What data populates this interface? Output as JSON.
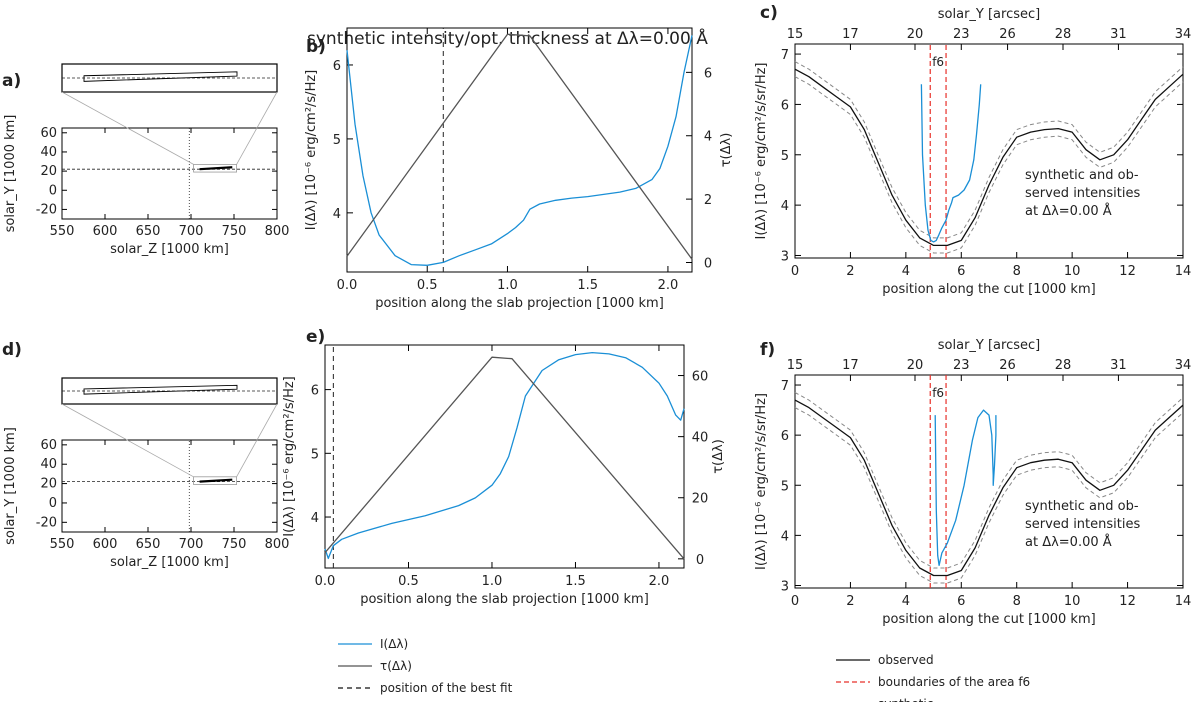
{
  "colors": {
    "blue": "#1a8fd6",
    "gray": "#555555",
    "black": "#000000",
    "red": "#e8302a",
    "dgray": "#888888"
  },
  "text": {
    "figure_c_title": "solar_Y [arcsec]",
    "figure_f_title": "solar_Y [arcsec]",
    "annot_line1": "synthetic and ob-",
    "annot_line2": "served intensities",
    "annot_line3": "at Δλ=0.00 Å",
    "f6": "f6"
  },
  "legend_b": [
    {
      "label": "I(Δλ)",
      "style": "blue-solid"
    },
    {
      "label": "τ(Δλ)",
      "style": "gray-solid"
    },
    {
      "label": "position of the best fit",
      "style": "black-dashed"
    }
  ],
  "legend_c": [
    {
      "label": "observed",
      "style": "black-solid"
    },
    {
      "label": "boundaries of the area f6",
      "style": "red-dashed"
    },
    {
      "label": "synthetic",
      "style": "blue-solid"
    }
  ],
  "chart_data": [
    {
      "panel": "a",
      "label": "a)",
      "type": "line",
      "xlabel": "solar_Z [1000 km]",
      "ylabel": "solar_Y [1000 km]",
      "xlim": [
        550,
        800
      ],
      "ylim": [
        -30,
        65
      ],
      "xticks": [
        550,
        600,
        650,
        700,
        750,
        800
      ],
      "yticks": [
        -20,
        0,
        20,
        40,
        60
      ],
      "ref_y": 22,
      "ref_x": 698,
      "slab": {
        "x": [
          710,
          748
        ],
        "y": [
          22,
          24
        ]
      },
      "zoom_box": {
        "x": [
          703,
          753
        ],
        "y": [
          19,
          27
        ]
      }
    },
    {
      "panel": "b",
      "label": "b)",
      "type": "line",
      "title": "synthetic intensity/opt. thickness at Δλ=0.00 Å",
      "xlabel": "position along the slab projection [1000 km]",
      "ylabel": "I(Δλ) [10⁻⁶ erg/cm²/s/Hz]",
      "y2label": "τ(Δλ)",
      "xlim": [
        0,
        2.15
      ],
      "ylim": [
        3.2,
        6.5
      ],
      "y2lim": [
        -0.3,
        7.4
      ],
      "xticks": [
        "0.0",
        "0.5",
        "1.0",
        "1.5",
        "2.0"
      ],
      "yticks": [
        "4",
        "5",
        "6"
      ],
      "y2ticks": [
        "0",
        "2",
        "4",
        "6"
      ],
      "best_fit_x": 0.6,
      "series": [
        {
          "name": "I(Δλ)",
          "axis": "left",
          "x": [
            0,
            0.05,
            0.1,
            0.15,
            0.2,
            0.3,
            0.4,
            0.5,
            0.6,
            0.7,
            0.8,
            0.9,
            1.0,
            1.05,
            1.1,
            1.14,
            1.2,
            1.3,
            1.4,
            1.5,
            1.6,
            1.7,
            1.8,
            1.9,
            1.95,
            2.0,
            2.05,
            2.1,
            2.15
          ],
          "y": [
            6.2,
            5.2,
            4.5,
            4.0,
            3.7,
            3.42,
            3.3,
            3.29,
            3.33,
            3.42,
            3.5,
            3.58,
            3.72,
            3.8,
            3.9,
            4.05,
            4.12,
            4.17,
            4.2,
            4.22,
            4.25,
            4.28,
            4.33,
            4.45,
            4.6,
            4.9,
            5.3,
            5.9,
            6.4
          ]
        },
        {
          "name": "τ(Δλ)",
          "axis": "right",
          "x": [
            0,
            1.0,
            1.14,
            2.15
          ],
          "y": [
            0.2,
            7.2,
            7.15,
            0.1
          ]
        }
      ]
    },
    {
      "panel": "c",
      "label": "c)",
      "type": "line",
      "xlabel": "position along the cut [1000 km]",
      "ylabel": "I(Δλ) [10⁻⁶ erg/cm²/s/sr/Hz]",
      "x2label": "solar_Y [arcsec]",
      "xlim": [
        0,
        14
      ],
      "ylim": [
        2.95,
        7.2
      ],
      "xticks": [
        "0",
        "2",
        "4",
        "6",
        "8",
        "10",
        "12",
        "14"
      ],
      "yticks": [
        "3",
        "4",
        "5",
        "6",
        "7"
      ],
      "top_ticks": [
        {
          "x": 0,
          "label": "15"
        },
        {
          "x": 2,
          "label": "17"
        },
        {
          "x": 4.33,
          "label": "20"
        },
        {
          "x": 6,
          "label": "23"
        },
        {
          "x": 7.67,
          "label": "26"
        },
        {
          "x": 9.67,
          "label": "28"
        },
        {
          "x": 11.67,
          "label": "31"
        },
        {
          "x": 14,
          "label": "34"
        }
      ],
      "f6_boundaries": [
        4.88,
        5.45
      ],
      "series": [
        {
          "name": "observed",
          "x": [
            0,
            0.5,
            1,
            1.5,
            2,
            2.5,
            3,
            3.5,
            4,
            4.5,
            5,
            5.5,
            6,
            6.5,
            7,
            7.5,
            8,
            8.5,
            9,
            9.5,
            10,
            10.5,
            11,
            11.5,
            12,
            12.5,
            13,
            13.5,
            14
          ],
          "y": [
            6.7,
            6.55,
            6.35,
            6.15,
            5.95,
            5.5,
            4.85,
            4.2,
            3.7,
            3.35,
            3.2,
            3.2,
            3.3,
            3.75,
            4.4,
            4.95,
            5.35,
            5.45,
            5.5,
            5.52,
            5.45,
            5.1,
            4.9,
            5.0,
            5.3,
            5.7,
            6.1,
            6.35,
            6.6
          ]
        },
        {
          "name": "observed +1σ",
          "x": [
            0,
            0.5,
            1,
            1.5,
            2,
            2.5,
            3,
            3.5,
            4,
            4.5,
            5,
            5.5,
            6,
            6.5,
            7,
            7.5,
            8,
            8.5,
            9,
            9.5,
            10,
            10.5,
            11,
            11.5,
            12,
            12.5,
            13,
            13.5,
            14
          ],
          "y": [
            6.85,
            6.7,
            6.5,
            6.3,
            6.1,
            5.65,
            5.0,
            4.35,
            3.85,
            3.5,
            3.35,
            3.35,
            3.45,
            3.9,
            4.55,
            5.1,
            5.5,
            5.6,
            5.65,
            5.67,
            5.6,
            5.25,
            5.05,
            5.15,
            5.45,
            5.85,
            6.25,
            6.5,
            6.75
          ]
        },
        {
          "name": "observed -1σ",
          "x": [
            0,
            0.5,
            1,
            1.5,
            2,
            2.5,
            3,
            3.5,
            4,
            4.5,
            5,
            5.5,
            6,
            6.5,
            7,
            7.5,
            8,
            8.5,
            9,
            9.5,
            10,
            10.5,
            11,
            11.5,
            12,
            12.5,
            13,
            13.5,
            14
          ],
          "y": [
            6.55,
            6.4,
            6.2,
            6.0,
            5.8,
            5.35,
            4.7,
            4.05,
            3.55,
            3.2,
            3.05,
            3.05,
            3.15,
            3.6,
            4.25,
            4.8,
            5.2,
            5.3,
            5.35,
            5.37,
            5.3,
            4.95,
            4.75,
            4.85,
            5.15,
            5.55,
            5.95,
            6.2,
            6.45
          ]
        },
        {
          "name": "synthetic",
          "x": [
            4.56,
            4.6,
            4.7,
            4.8,
            4.9,
            5.0,
            5.1,
            5.2,
            5.3,
            5.45,
            5.55,
            5.65,
            5.7,
            5.9,
            6.1,
            6.3,
            6.45,
            6.55,
            6.65,
            6.7
          ],
          "y": [
            6.4,
            5.0,
            4.0,
            3.5,
            3.3,
            3.27,
            3.3,
            3.42,
            3.55,
            3.7,
            3.9,
            4.05,
            4.15,
            4.2,
            4.3,
            4.5,
            4.9,
            5.4,
            6.0,
            6.4
          ]
        }
      ]
    },
    {
      "panel": "d",
      "label": "d)",
      "type": "line",
      "xlabel": "solar_Z [1000 km]",
      "ylabel": "solar_Y [1000 km]",
      "xlim": [
        550,
        800
      ],
      "ylim": [
        -30,
        65
      ],
      "xticks": [
        550,
        600,
        650,
        700,
        750,
        800
      ],
      "yticks": [
        -20,
        0,
        20,
        40,
        60
      ],
      "ref_y": 22,
      "ref_x": 698,
      "slab": {
        "x": [
          710,
          748
        ],
        "y": [
          22,
          24
        ]
      },
      "zoom_box": {
        "x": [
          703,
          753
        ],
        "y": [
          19,
          27
        ]
      }
    },
    {
      "panel": "e",
      "label": "e)",
      "type": "line",
      "xlabel": "position along the slab projection [1000 km]",
      "ylabel": "I(Δλ) [10⁻⁶ erg/cm²/s/Hz]",
      "y2label": "τ(Δλ)",
      "xlim": [
        0,
        2.15
      ],
      "ylim": [
        3.2,
        6.7
      ],
      "y2lim": [
        -3,
        70
      ],
      "xticks": [
        "0.0",
        "0.5",
        "1.0",
        "1.5",
        "2.0"
      ],
      "yticks": [
        "4",
        "5",
        "6"
      ],
      "y2ticks": [
        "0",
        "20",
        "40",
        "60"
      ],
      "best_fit_x": 0.05,
      "series": [
        {
          "name": "I(Δλ)",
          "axis": "left",
          "x": [
            0,
            0.02,
            0.05,
            0.1,
            0.2,
            0.4,
            0.6,
            0.8,
            0.9,
            1.0,
            1.05,
            1.1,
            1.15,
            1.2,
            1.3,
            1.4,
            1.5,
            1.6,
            1.7,
            1.8,
            1.9,
            2.0,
            2.05,
            2.1,
            2.13,
            2.15
          ],
          "y": [
            3.5,
            3.35,
            3.55,
            3.65,
            3.75,
            3.9,
            4.02,
            4.18,
            4.3,
            4.5,
            4.68,
            4.95,
            5.4,
            5.9,
            6.3,
            6.47,
            6.55,
            6.58,
            6.56,
            6.5,
            6.35,
            6.1,
            5.9,
            5.6,
            5.52,
            5.7
          ]
        },
        {
          "name": "τ(Δλ)",
          "axis": "right",
          "x": [
            0,
            1.0,
            1.12,
            2.15
          ],
          "y": [
            2,
            66,
            65.5,
            0
          ]
        }
      ]
    },
    {
      "panel": "f",
      "label": "f)",
      "type": "line",
      "xlabel": "position along the cut [1000 km]",
      "ylabel": "I(Δλ) [10⁻⁶ erg/cm²/s/sr/Hz]",
      "x2label": "solar_Y [arcsec]",
      "xlim": [
        0,
        14
      ],
      "ylim": [
        2.95,
        7.2
      ],
      "xticks": [
        "0",
        "2",
        "4",
        "6",
        "8",
        "10",
        "12",
        "14"
      ],
      "yticks": [
        "3",
        "4",
        "5",
        "6",
        "7"
      ],
      "top_ticks": [
        {
          "x": 0,
          "label": "15"
        },
        {
          "x": 2,
          "label": "17"
        },
        {
          "x": 4.33,
          "label": "20"
        },
        {
          "x": 6,
          "label": "23"
        },
        {
          "x": 7.67,
          "label": "26"
        },
        {
          "x": 9.67,
          "label": "28"
        },
        {
          "x": 11.67,
          "label": "31"
        },
        {
          "x": 14,
          "label": "34"
        }
      ],
      "f6_boundaries": [
        4.88,
        5.45
      ],
      "series": [
        {
          "name": "observed",
          "x": [
            0,
            0.5,
            1,
            1.5,
            2,
            2.5,
            3,
            3.5,
            4,
            4.5,
            5,
            5.5,
            6,
            6.5,
            7,
            7.5,
            8,
            8.5,
            9,
            9.5,
            10,
            10.5,
            11,
            11.5,
            12,
            12.5,
            13,
            13.5,
            14
          ],
          "y": [
            6.7,
            6.55,
            6.35,
            6.15,
            5.95,
            5.5,
            4.85,
            4.2,
            3.7,
            3.35,
            3.2,
            3.2,
            3.3,
            3.75,
            4.4,
            4.95,
            5.35,
            5.45,
            5.5,
            5.52,
            5.45,
            5.1,
            4.9,
            5.0,
            5.3,
            5.7,
            6.1,
            6.35,
            6.6
          ]
        },
        {
          "name": "observed +1σ",
          "x": [
            0,
            0.5,
            1,
            1.5,
            2,
            2.5,
            3,
            3.5,
            4,
            4.5,
            5,
            5.5,
            6,
            6.5,
            7,
            7.5,
            8,
            8.5,
            9,
            9.5,
            10,
            10.5,
            11,
            11.5,
            12,
            12.5,
            13,
            13.5,
            14
          ],
          "y": [
            6.85,
            6.7,
            6.5,
            6.3,
            6.1,
            5.65,
            5.0,
            4.35,
            3.85,
            3.5,
            3.35,
            3.35,
            3.45,
            3.9,
            4.55,
            5.1,
            5.5,
            5.6,
            5.65,
            5.67,
            5.6,
            5.25,
            5.05,
            5.15,
            5.45,
            5.85,
            6.25,
            6.5,
            6.75
          ]
        },
        {
          "name": "observed -1σ",
          "x": [
            0,
            0.5,
            1,
            1.5,
            2,
            2.5,
            3,
            3.5,
            4,
            4.5,
            5,
            5.5,
            6,
            6.5,
            7,
            7.5,
            8,
            8.5,
            9,
            9.5,
            10,
            10.5,
            11,
            11.5,
            12,
            12.5,
            13,
            13.5,
            14
          ],
          "y": [
            6.55,
            6.4,
            6.2,
            6.0,
            5.8,
            5.35,
            4.7,
            4.05,
            3.55,
            3.2,
            3.05,
            3.05,
            3.15,
            3.6,
            4.25,
            4.8,
            5.2,
            5.3,
            5.35,
            5.37,
            5.3,
            4.95,
            4.75,
            4.85,
            5.15,
            5.55,
            5.95,
            6.2,
            6.45
          ]
        },
        {
          "name": "synthetic",
          "x": [
            5.06,
            5.1,
            5.15,
            5.2,
            5.3,
            5.5,
            5.8,
            6.1,
            6.4,
            6.6,
            6.8,
            7.0,
            7.1,
            7.15,
            7.15,
            7.2,
            7.25,
            7.25
          ],
          "y": [
            6.4,
            4.5,
            3.6,
            3.4,
            3.65,
            3.85,
            4.3,
            5.0,
            5.9,
            6.35,
            6.5,
            6.4,
            6.0,
            5.2,
            5.0,
            5.4,
            6.0,
            6.4
          ]
        }
      ]
    }
  ]
}
